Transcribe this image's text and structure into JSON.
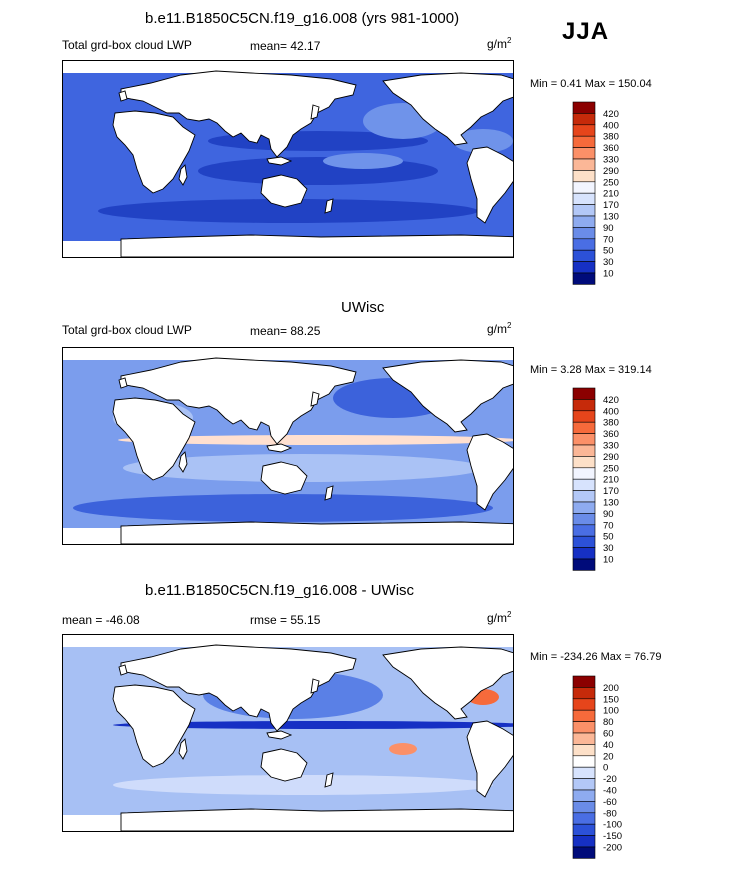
{
  "season": "JJA",
  "panels": [
    {
      "title": "b.e11.B1850C5CN.f19_g16.008 (yrs 981-1000)",
      "left_label": "Total grd-box cloud LWP",
      "stat_label": "mean=  42.17",
      "units_base": "g/m",
      "units_exp": "2",
      "minmax": "Min =   0.41 Max = 150.04",
      "colorbar": {
        "labels": [
          "420",
          "400",
          "380",
          "360",
          "330",
          "290",
          "250",
          "210",
          "170",
          "130",
          "90",
          "70",
          "50",
          "30",
          "10"
        ],
        "colors": [
          "#8b0000",
          "#c62a0a",
          "#e6451b",
          "#f66a3b",
          "#fb9068",
          "#fbb797",
          "#fde0c8",
          "#f2f5ff",
          "#d7e3fd",
          "#b3c8f7",
          "#8eabf0",
          "#6a8ce8",
          "#4a6ee4",
          "#2c51d8",
          "#1630c4",
          "#000b7a"
        ]
      },
      "palette": {
        "land": "#ffffff",
        "ocean": "#3f65df",
        "ocean_dark": "#2142c4",
        "ocean_light": "#6f93ea",
        "ice": "#ffffff"
      }
    },
    {
      "title": "UWisc",
      "left_label": "Total grd-box cloud LWP",
      "stat_label": "mean=  88.25",
      "units_base": "g/m",
      "units_exp": "2",
      "minmax": "Min =   3.28 Max = 319.14",
      "colorbar": {
        "labels": [
          "420",
          "400",
          "380",
          "360",
          "330",
          "290",
          "250",
          "210",
          "170",
          "130",
          "90",
          "70",
          "50",
          "30",
          "10"
        ],
        "colors": [
          "#8b0000",
          "#c62a0a",
          "#e6451b",
          "#f66a3b",
          "#fb9068",
          "#fbb797",
          "#fde0c8",
          "#f2f5ff",
          "#d7e3fd",
          "#b3c8f7",
          "#8eabf0",
          "#6a8ce8",
          "#4a6ee4",
          "#2c51d8",
          "#1630c4",
          "#000b7a"
        ]
      },
      "palette": {
        "land": "#ffffff",
        "ocean": "#7b9ded",
        "ocean_dark": "#3c62db",
        "ocean_light": "#aac2f5",
        "ice": "#ffffff"
      }
    },
    {
      "title": "b.e11.B1850C5CN.f19_g16.008 - UWisc",
      "left_label": "mean = -46.08",
      "stat_label": "rmse =  55.15",
      "units_base": "g/m",
      "units_exp": "2",
      "minmax": "Min = -234.26 Max =  76.79",
      "colorbar": {
        "labels": [
          "200",
          "150",
          "100",
          "80",
          "60",
          "40",
          "20",
          "0",
          "-20",
          "-40",
          "-60",
          "-80",
          "-100",
          "-150",
          "-200"
        ],
        "colors": [
          "#8b0000",
          "#c62a0a",
          "#e6451b",
          "#f66a3b",
          "#fb9068",
          "#fbb797",
          "#fde0c8",
          "#ffffff",
          "#d7e3fd",
          "#b3c8f7",
          "#8eabf0",
          "#6a8ce8",
          "#4a6ee4",
          "#2c51d8",
          "#1630c4",
          "#000b7a"
        ]
      },
      "palette": {
        "land": "#ffffff",
        "ocean": "#a7c0f4",
        "ocean_dark": "#5a80e6",
        "ocean_light": "#cfdcfb",
        "ice": "#ffffff"
      }
    }
  ]
}
